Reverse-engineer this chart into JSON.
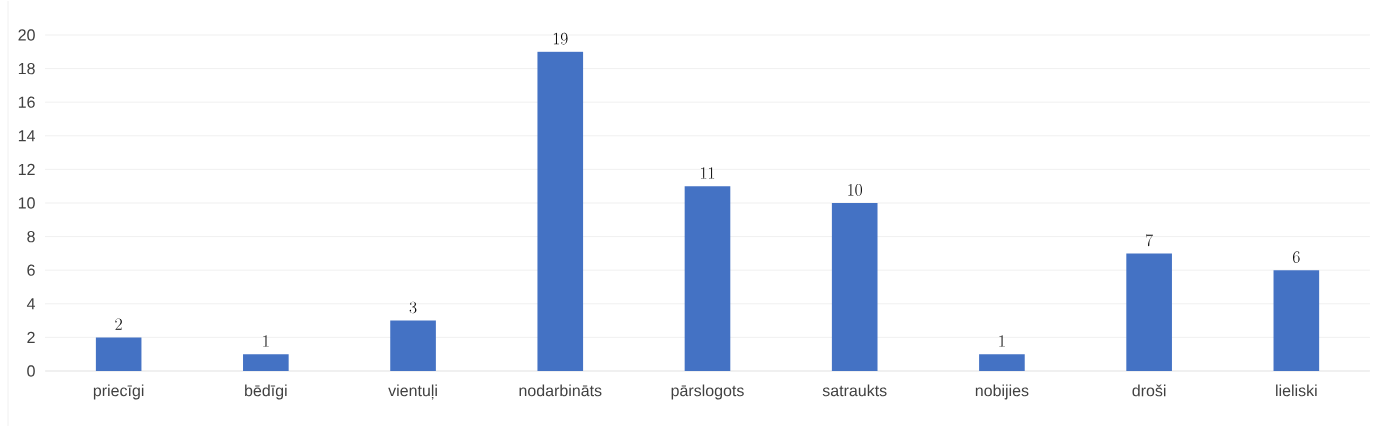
{
  "chart_data": {
    "type": "bar",
    "categories": [
      "priecīgi",
      "bēdīgi",
      "vientuļi",
      "nodarbināts",
      "pārslogots",
      "satraukts",
      "nobijies",
      "droši",
      "lieliski"
    ],
    "values": [
      2,
      1,
      3,
      19,
      11,
      10,
      1,
      7,
      6
    ],
    "color": "#4472c4",
    "ylim": [
      0,
      20
    ],
    "yticks": [
      0,
      2,
      4,
      6,
      8,
      10,
      12,
      14,
      16,
      18,
      20
    ],
    "grid": "y",
    "data_labels": true
  }
}
